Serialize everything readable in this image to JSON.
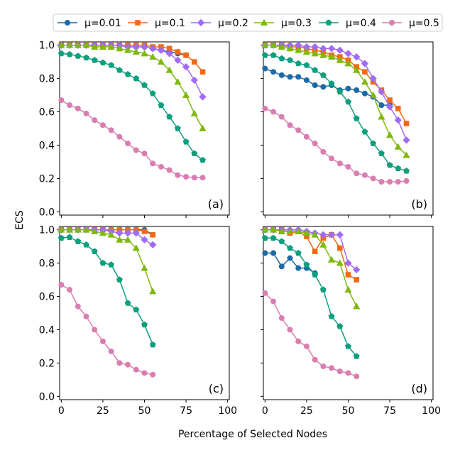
{
  "chart_data": {
    "type": "line",
    "xlabel": "Percentage of Selected Nodes",
    "ylabel": "ECS",
    "xlim": [
      -1,
      101
    ],
    "ylim": [
      -0.02,
      1.02
    ],
    "x_ticks": [
      0,
      25,
      50,
      75,
      100
    ],
    "y_ticks": [
      0.0,
      0.2,
      0.4,
      0.6,
      0.8,
      1.0
    ],
    "x_tick_labels": [
      "0",
      "25",
      "50",
      "75",
      "100"
    ],
    "y_tick_labels": [
      "0.0",
      "0.2",
      "0.4",
      "0.6",
      "0.8",
      "1.0"
    ],
    "grid": false,
    "legend_position": "top",
    "legend": [
      {
        "name": "μ=0.01",
        "color": "#1f6aa5",
        "marker": "circle"
      },
      {
        "name": "μ=0.1",
        "color": "#f16913",
        "marker": "square"
      },
      {
        "name": "μ=0.2",
        "color": "#a06cf6",
        "marker": "diamond"
      },
      {
        "name": "μ=0.3",
        "color": "#7fb80e",
        "marker": "triangle"
      },
      {
        "name": "μ=0.4",
        "color": "#0e9f7e",
        "marker": "pentagon"
      },
      {
        "name": "μ=0.5",
        "color": "#d97eb1",
        "marker": "circle"
      }
    ],
    "panels": [
      {
        "label": "(a)",
        "series": [
          {
            "name": "μ=0.01",
            "x": [
              0,
              5,
              10,
              15,
              20,
              25,
              30,
              35,
              40,
              45,
              50,
              55,
              60,
              65,
              70,
              75
            ],
            "y": [
              1.0,
              1.0,
              1.0,
              1.0,
              1.0,
              1.0,
              1.0,
              1.0,
              0.99,
              0.99,
              0.99,
              0.98,
              0.97,
              0.96,
              0.95,
              0.94
            ]
          },
          {
            "name": "μ=0.1",
            "x": [
              0,
              5,
              10,
              15,
              20,
              25,
              30,
              35,
              40,
              45,
              50,
              55,
              60,
              65,
              70,
              75,
              80,
              85
            ],
            "y": [
              1.0,
              1.0,
              1.0,
              1.0,
              1.0,
              1.0,
              1.0,
              1.0,
              1.0,
              1.0,
              1.0,
              0.99,
              0.99,
              0.98,
              0.96,
              0.94,
              0.9,
              0.84
            ]
          },
          {
            "name": "μ=0.2",
            "x": [
              0,
              5,
              10,
              15,
              20,
              25,
              30,
              35,
              40,
              45,
              50,
              55,
              60,
              65,
              70,
              75,
              80,
              85
            ],
            "y": [
              1.0,
              1.0,
              1.0,
              1.0,
              1.0,
              1.0,
              1.0,
              1.0,
              0.99,
              0.99,
              0.99,
              0.98,
              0.97,
              0.95,
              0.91,
              0.87,
              0.79,
              0.69
            ]
          },
          {
            "name": "μ=0.3",
            "x": [
              0,
              5,
              10,
              15,
              20,
              25,
              30,
              35,
              40,
              45,
              50,
              55,
              60,
              65,
              70,
              75,
              80,
              85
            ],
            "y": [
              1.0,
              1.0,
              1.0,
              1.0,
              0.99,
              0.99,
              0.99,
              0.98,
              0.97,
              0.96,
              0.95,
              0.93,
              0.9,
              0.85,
              0.78,
              0.7,
              0.59,
              0.5
            ]
          },
          {
            "name": "μ=0.4",
            "x": [
              0,
              5,
              10,
              15,
              20,
              25,
              30,
              35,
              40,
              45,
              50,
              55,
              60,
              65,
              70,
              75,
              80,
              85
            ],
            "y": [
              0.95,
              0.945,
              0.935,
              0.925,
              0.91,
              0.895,
              0.88,
              0.85,
              0.825,
              0.8,
              0.76,
              0.71,
              0.64,
              0.57,
              0.5,
              0.42,
              0.35,
              0.31
            ]
          },
          {
            "name": "μ=0.5",
            "x": [
              0,
              5,
              10,
              15,
              20,
              25,
              30,
              35,
              40,
              45,
              50,
              55,
              60,
              65,
              70,
              75,
              80,
              85
            ],
            "y": [
              0.67,
              0.64,
              0.62,
              0.59,
              0.55,
              0.52,
              0.49,
              0.45,
              0.41,
              0.37,
              0.35,
              0.29,
              0.27,
              0.25,
              0.22,
              0.21,
              0.205,
              0.205
            ]
          }
        ]
      },
      {
        "label": "(b)",
        "series": [
          {
            "name": "μ=0.01",
            "x": [
              0,
              5,
              10,
              15,
              20,
              25,
              30,
              35,
              40,
              45,
              50,
              55,
              60,
              65,
              70,
              75
            ],
            "y": [
              0.86,
              0.84,
              0.82,
              0.81,
              0.81,
              0.79,
              0.76,
              0.75,
              0.76,
              0.73,
              0.74,
              0.73,
              0.71,
              0.69,
              0.64,
              0.64
            ]
          },
          {
            "name": "μ=0.1",
            "x": [
              0,
              5,
              10,
              15,
              20,
              25,
              30,
              35,
              40,
              45,
              50,
              55,
              60,
              65,
              70,
              75,
              80,
              85
            ],
            "y": [
              1.0,
              1.0,
              1.0,
              0.99,
              0.99,
              0.98,
              0.97,
              0.96,
              0.94,
              0.93,
              0.91,
              0.87,
              0.84,
              0.78,
              0.73,
              0.67,
              0.62,
              0.53
            ]
          },
          {
            "name": "μ=0.2",
            "x": [
              0,
              5,
              10,
              15,
              20,
              25,
              30,
              35,
              40,
              45,
              50,
              55,
              60,
              65,
              70,
              75,
              80,
              85
            ],
            "y": [
              1.0,
              1.0,
              1.0,
              1.0,
              1.0,
              0.99,
              0.99,
              0.98,
              0.98,
              0.97,
              0.95,
              0.93,
              0.89,
              0.8,
              0.72,
              0.63,
              0.55,
              0.43
            ]
          },
          {
            "name": "μ=0.3",
            "x": [
              0,
              5,
              10,
              15,
              20,
              25,
              30,
              35,
              40,
              45,
              50,
              55,
              60,
              65,
              70,
              75,
              80,
              85
            ],
            "y": [
              1.0,
              1.0,
              0.99,
              0.98,
              0.97,
              0.96,
              0.95,
              0.94,
              0.93,
              0.91,
              0.89,
              0.85,
              0.78,
              0.7,
              0.57,
              0.46,
              0.39,
              0.34
            ]
          },
          {
            "name": "μ=0.4",
            "x": [
              0,
              5,
              10,
              15,
              20,
              25,
              30,
              35,
              40,
              45,
              50,
              55,
              60,
              65,
              70,
              75,
              80,
              85
            ],
            "y": [
              0.94,
              0.94,
              0.92,
              0.91,
              0.89,
              0.88,
              0.85,
              0.82,
              0.77,
              0.72,
              0.66,
              0.56,
              0.48,
              0.41,
              0.35,
              0.28,
              0.26,
              0.245
            ]
          },
          {
            "name": "μ=0.5",
            "x": [
              0,
              5,
              10,
              15,
              20,
              25,
              30,
              35,
              40,
              45,
              50,
              55,
              60,
              65,
              70,
              75,
              80,
              85
            ],
            "y": [
              0.62,
              0.6,
              0.57,
              0.52,
              0.49,
              0.45,
              0.41,
              0.36,
              0.32,
              0.29,
              0.27,
              0.23,
              0.22,
              0.2,
              0.18,
              0.18,
              0.18,
              0.185
            ]
          }
        ]
      },
      {
        "label": "(c)",
        "series": [
          {
            "name": "μ=0.01",
            "x": [
              0,
              5,
              10,
              15,
              20,
              25,
              30,
              35,
              40,
              45,
              50,
              55
            ],
            "y": [
              1.0,
              1.0,
              1.0,
              1.0,
              1.0,
              1.0,
              1.0,
              1.0,
              1.0,
              1.0,
              1.0,
              0.97
            ]
          },
          {
            "name": "μ=0.1",
            "x": [
              0,
              5,
              10,
              15,
              20,
              25,
              30,
              35,
              40,
              45,
              50,
              55
            ],
            "y": [
              1.0,
              1.0,
              1.0,
              1.0,
              1.0,
              1.0,
              1.0,
              1.0,
              1.0,
              1.0,
              0.99,
              0.97
            ]
          },
          {
            "name": "μ=0.2",
            "x": [
              0,
              5,
              10,
              15,
              20,
              25,
              30,
              35,
              40,
              45,
              50,
              55
            ],
            "y": [
              1.0,
              1.0,
              1.0,
              1.0,
              1.0,
              1.0,
              0.99,
              0.98,
              0.98,
              0.98,
              0.94,
              0.91
            ]
          },
          {
            "name": "μ=0.3",
            "x": [
              0,
              5,
              10,
              15,
              20,
              25,
              30,
              35,
              40,
              45,
              50,
              55
            ],
            "y": [
              1.0,
              1.0,
              1.0,
              1.0,
              0.99,
              0.98,
              0.97,
              0.94,
              0.94,
              0.89,
              0.77,
              0.63
            ]
          },
          {
            "name": "μ=0.4",
            "x": [
              0,
              5,
              10,
              15,
              20,
              25,
              30,
              35,
              40,
              45,
              50,
              55
            ],
            "y": [
              0.95,
              0.955,
              0.93,
              0.91,
              0.87,
              0.8,
              0.79,
              0.7,
              0.56,
              0.52,
              0.43,
              0.31
            ]
          },
          {
            "name": "μ=0.5",
            "x": [
              0,
              5,
              10,
              15,
              20,
              25,
              30,
              35,
              40,
              45,
              50,
              55
            ],
            "y": [
              0.67,
              0.64,
              0.54,
              0.48,
              0.4,
              0.33,
              0.27,
              0.2,
              0.19,
              0.16,
              0.14,
              0.13
            ]
          }
        ]
      },
      {
        "label": "(d)",
        "series": [
          {
            "name": "μ=0.01",
            "x": [
              0,
              5,
              10,
              15,
              20,
              25,
              30
            ],
            "y": [
              0.86,
              0.86,
              0.78,
              0.83,
              0.77,
              0.77,
              0.74
            ]
          },
          {
            "name": "μ=0.1",
            "x": [
              0,
              5,
              10,
              15,
              20,
              25,
              30,
              35,
              40,
              45,
              50,
              55
            ],
            "y": [
              1.0,
              1.0,
              1.0,
              0.98,
              0.99,
              0.96,
              0.87,
              0.95,
              0.97,
              0.89,
              0.73,
              0.7
            ]
          },
          {
            "name": "μ=0.2",
            "x": [
              0,
              5,
              10,
              15,
              20,
              25,
              30,
              35,
              40,
              45,
              50,
              55
            ],
            "y": [
              1.0,
              1.0,
              1.0,
              1.0,
              1.0,
              0.99,
              0.98,
              0.97,
              0.97,
              0.97,
              0.8,
              0.76
            ]
          },
          {
            "name": "μ=0.3",
            "x": [
              0,
              5,
              10,
              15,
              20,
              25,
              30,
              35,
              40,
              45,
              50,
              55
            ],
            "y": [
              1.0,
              1.0,
              0.99,
              0.99,
              0.99,
              0.98,
              0.97,
              0.91,
              0.82,
              0.8,
              0.64,
              0.54
            ]
          },
          {
            "name": "μ=0.4",
            "x": [
              0,
              5,
              10,
              15,
              20,
              25,
              30,
              35,
              40,
              45,
              50,
              55
            ],
            "y": [
              0.95,
              0.95,
              0.93,
              0.89,
              0.86,
              0.79,
              0.73,
              0.64,
              0.48,
              0.42,
              0.3,
              0.24
            ]
          },
          {
            "name": "μ=0.5",
            "x": [
              0,
              5,
              10,
              15,
              20,
              25,
              30,
              35,
              40,
              45,
              50,
              55
            ],
            "y": [
              0.62,
              0.57,
              0.47,
              0.4,
              0.33,
              0.3,
              0.22,
              0.18,
              0.17,
              0.15,
              0.14,
              0.12
            ]
          }
        ]
      }
    ]
  }
}
